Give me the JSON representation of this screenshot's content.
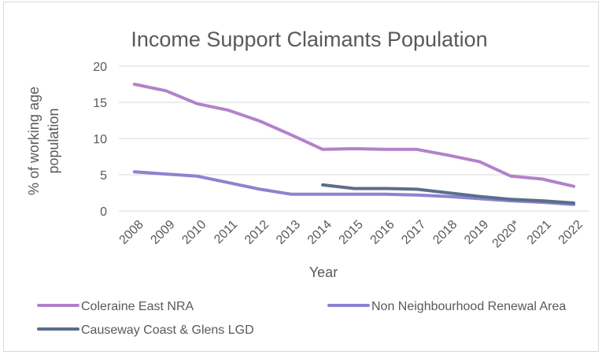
{
  "chart_data": {
    "type": "line",
    "title": "Income Support Claimants Population",
    "xlabel": "Year",
    "ylabel_lines": [
      "% of working age",
      "population"
    ],
    "ylim": [
      0,
      20
    ],
    "yticks": [
      0,
      5,
      10,
      15,
      20
    ],
    "categories": [
      "2008",
      "2009",
      "2010",
      "2011",
      "2012",
      "2013",
      "2014",
      "2015",
      "2016",
      "2017",
      "2018",
      "2019",
      "2020*",
      "2021",
      "2022"
    ],
    "grid": true,
    "legend_position": "bottom",
    "series": [
      {
        "name": "Coleraine East NRA",
        "color": "#b381c9",
        "values": [
          17.5,
          16.6,
          14.8,
          13.9,
          12.4,
          10.5,
          8.5,
          8.6,
          8.5,
          8.5,
          7.7,
          6.8,
          4.8,
          4.4,
          3.4
        ]
      },
      {
        "name": "Non Neighbourhood Renewal Area",
        "color": "#8a84cf",
        "values": [
          5.4,
          5.1,
          4.8,
          3.9,
          3.0,
          2.3,
          2.3,
          2.3,
          2.3,
          2.2,
          2.0,
          1.7,
          1.4,
          1.2,
          0.9
        ]
      },
      {
        "name": "Causeway Coast & Glens LGD",
        "color": "#5b6e8a",
        "values": [
          null,
          null,
          null,
          null,
          null,
          null,
          3.6,
          3.1,
          3.1,
          3.0,
          2.5,
          2.0,
          1.6,
          1.4,
          1.1
        ]
      }
    ]
  }
}
